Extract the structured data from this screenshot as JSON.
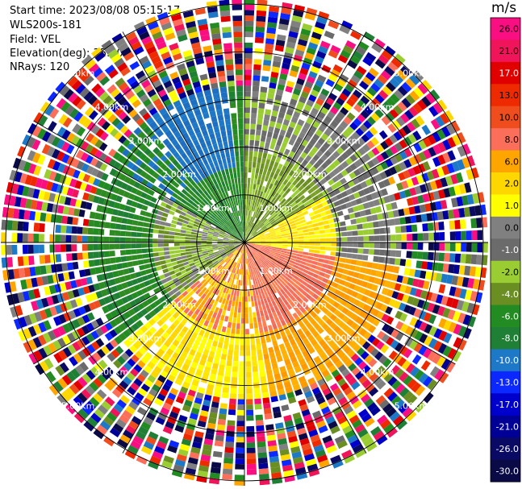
{
  "header": {
    "start_time": "Start time: 2023/08/08 05:15:17",
    "instrument": "WLS200s-181",
    "field": "Field: VEL",
    "elevation": "Elevation(deg): 35.30",
    "nrays": "NRays: 120"
  },
  "chart_data": {
    "type": "heatmap",
    "projection": "polar-ppi",
    "field": "VEL",
    "nrays": 120,
    "range_rings_km": [
      "1.00km",
      "2.00km",
      "3.00km",
      "4.00km",
      "5.00km"
    ],
    "max_range_km": 5.0,
    "colorbar": {
      "unit": "m/s",
      "ticks": [
        "26.0",
        "21.0",
        "17.0",
        "13.0",
        "10.0",
        "8.0",
        "6.0",
        "2.0",
        "1.0",
        "0.0",
        "-1.0",
        "-2.0",
        "-4.0",
        "-6.0",
        "-8.0",
        "-10.0",
        "-13.0",
        "-17.0",
        "-21.0",
        "-26.0",
        "-30.0"
      ],
      "colors": [
        "#fa0f82",
        "#f0145a",
        "#e00000",
        "#ee2a00",
        "#f04d1e",
        "#fa6e5a",
        "#ffa500",
        "#ffd700",
        "#ffff00",
        "#808080",
        "#6b6b6b",
        "#9acd32",
        "#6b8e23",
        "#228b22",
        "#1f7f34",
        "#1e78c8",
        "#0a28ff",
        "#0000cd",
        "#000096",
        "#0a0a64",
        "#0a0a46"
      ]
    },
    "pattern": {
      "description_sectors_deg": [
        {
          "from": 300,
          "to": 360,
          "near": "green",
          "far": "green"
        },
        {
          "from": 0,
          "to": 60,
          "near": "olive-green",
          "far": "gray"
        },
        {
          "from": 60,
          "to": 100,
          "near": "yellow",
          "far": "gray"
        },
        {
          "from": 100,
          "to": 170,
          "near": "salmon",
          "far": "orange"
        },
        {
          "from": 170,
          "to": 230,
          "near": "salmon-yellow",
          "far": "yellow"
        },
        {
          "from": 230,
          "to": 300,
          "near": "gray-green",
          "far": "green"
        }
      ],
      "clean_range_km": 3.3
    }
  }
}
